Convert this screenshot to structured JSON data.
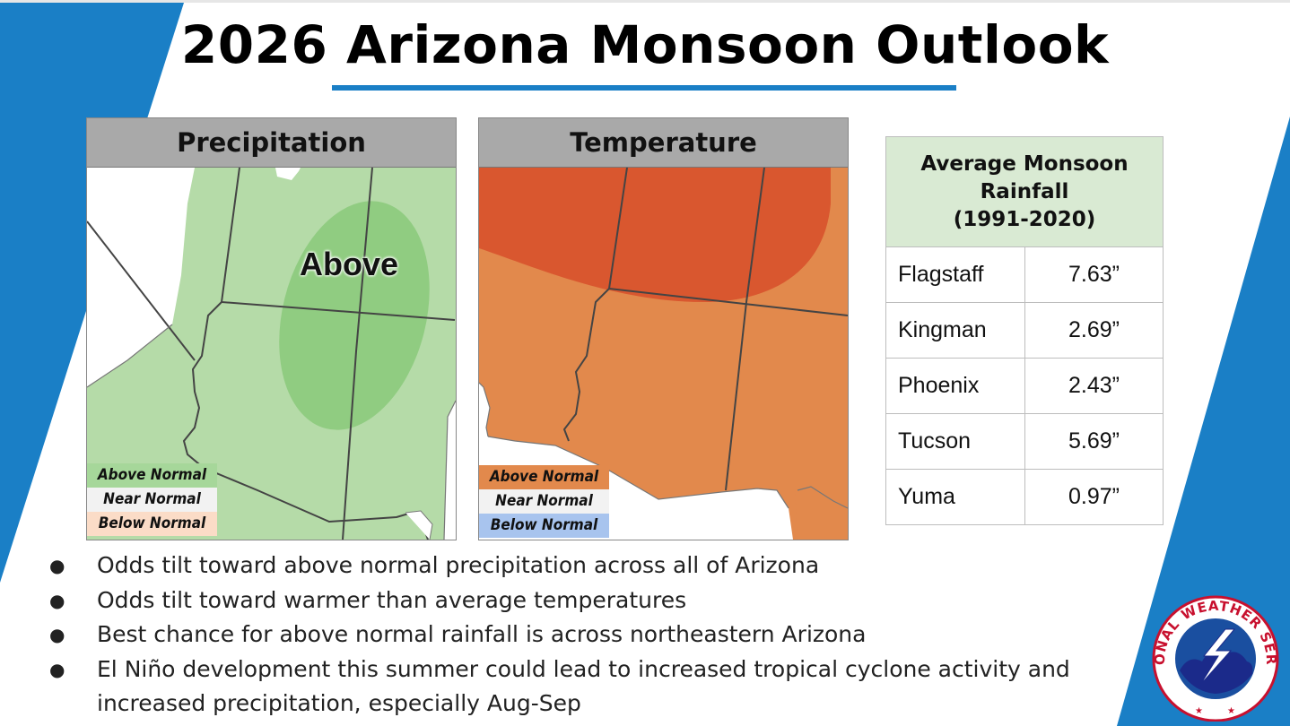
{
  "title": "2026 Arizona Monsoon Outlook",
  "colors": {
    "accent_blue": "#1a7fc6",
    "above_precip": "#b5dba8",
    "above_precip_core": "#8ac97a",
    "above_temp": "#e2894c",
    "above_temp_core": "#d9572f",
    "near_normal": "#f0f0f0",
    "below_normal_warm": "#fbdcc7",
    "below_normal_cool": "#a8c4ee",
    "table_header": "#d9ead3"
  },
  "precipitation": {
    "header": "Precipitation",
    "map_label": "Above",
    "legend": [
      "Above Normal",
      "Near Normal",
      "Below Normal"
    ]
  },
  "temperature": {
    "header": "Temperature",
    "legend": [
      "Above Normal",
      "Near Normal",
      "Below Normal"
    ]
  },
  "rainfall_table": {
    "header_line1": "Average Monsoon",
    "header_line2": "Rainfall",
    "header_line3": "(1991-2020)",
    "rows": [
      {
        "city": "Flagstaff",
        "value": "7.63”"
      },
      {
        "city": "Kingman",
        "value": "2.69”"
      },
      {
        "city": "Phoenix",
        "value": "2.43”"
      },
      {
        "city": "Tucson",
        "value": "5.69”"
      },
      {
        "city": "Yuma",
        "value": "0.97”"
      }
    ]
  },
  "bullets": [
    "Odds tilt toward above normal precipitation across all of Arizona",
    "Odds tilt toward warmer than average temperatures",
    "Best chance for above normal rainfall is across northeastern Arizona",
    "El Niño development this summer could lead to increased tropical cyclone activity and increased precipitation, especially Aug-Sep"
  ],
  "logo": {
    "icon": "nws-logo-icon",
    "text": "NATIONAL WEATHER SERVICE"
  }
}
